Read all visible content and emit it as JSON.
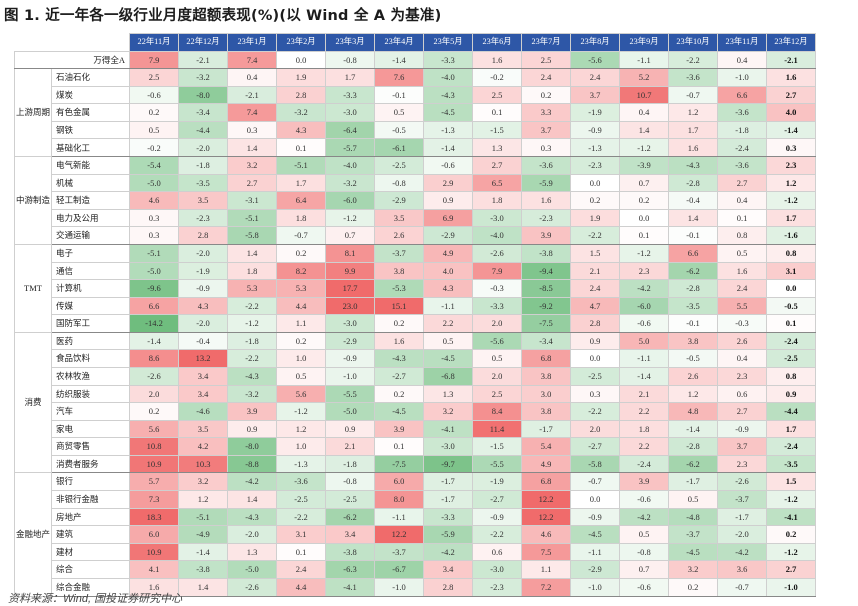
{
  "title": "图 1. 近一年各一级行业月度超额表现(%)(以 Wind 全 A 为基准)",
  "source": "资料来源：Wind, 国投证券研究中心",
  "months": [
    "22年11月",
    "22年12月",
    "23年1月",
    "23年2月",
    "23年3月",
    "23年4月",
    "23年5月",
    "23年6月",
    "23年7月",
    "23年8月",
    "23年9月",
    "23年10月",
    "23年11月",
    "23年12月"
  ],
  "colors": {
    "header": "#2e57a7",
    "pos_max": "#f06b6b",
    "neg_max": "#6fbd7e"
  },
  "wande": {
    "name": "万得全A",
    "values": [
      7.9,
      -2.1,
      7.4,
      0.0,
      -0.8,
      -1.4,
      -3.3,
      1.6,
      2.5,
      -5.6,
      -1.1,
      -2.2,
      0.4,
      -2.1
    ]
  },
  "groups": [
    {
      "name": "上游周期",
      "rows": [
        {
          "name": "石油石化",
          "values": [
            2.5,
            -3.2,
            0.4,
            1.9,
            1.7,
            7.6,
            -4.0,
            -0.2,
            2.4,
            2.4,
            5.2,
            -3.6,
            -1.0,
            1.6
          ]
        },
        {
          "name": "煤炭",
          "values": [
            -0.6,
            -8.0,
            -2.1,
            2.8,
            -3.3,
            -0.1,
            -4.3,
            2.5,
            0.2,
            3.7,
            10.7,
            -0.7,
            6.6,
            2.7
          ]
        },
        {
          "name": "有色金属",
          "values": [
            0.2,
            -3.4,
            7.4,
            -3.2,
            -3.0,
            0.5,
            -4.5,
            0.1,
            3.3,
            -1.9,
            0.4,
            1.2,
            -3.6,
            4.0
          ]
        },
        {
          "name": "钢铁",
          "values": [
            0.5,
            -4.4,
            0.3,
            4.3,
            -6.4,
            -0.5,
            -1.3,
            -1.5,
            3.7,
            -0.9,
            1.4,
            1.7,
            -1.8,
            -1.4
          ]
        },
        {
          "name": "基础化工",
          "values": [
            -0.2,
            -2.0,
            1.4,
            0.1,
            -5.7,
            -6.1,
            -1.4,
            1.3,
            0.3,
            -1.3,
            -1.2,
            1.6,
            -2.4,
            0.3
          ]
        }
      ]
    },
    {
      "name": "中游制造",
      "rows": [
        {
          "name": "电气新能",
          "values": [
            -5.4,
            -1.8,
            3.2,
            -5.1,
            -4.0,
            -2.5,
            -0.6,
            2.7,
            -3.6,
            -2.3,
            -3.9,
            -4.3,
            -3.6,
            2.3
          ]
        },
        {
          "name": "机械",
          "values": [
            -5.0,
            -3.5,
            2.7,
            1.7,
            -3.2,
            -0.8,
            2.9,
            6.5,
            -5.9,
            0.0,
            0.7,
            -2.8,
            2.7,
            1.2
          ]
        },
        {
          "name": "轻工制造",
          "values": [
            4.6,
            3.5,
            -3.1,
            6.4,
            -6.0,
            -2.9,
            0.9,
            1.8,
            1.6,
            0.2,
            0.2,
            -0.4,
            0.4,
            -1.2
          ]
        },
        {
          "name": "电力及公用",
          "values": [
            0.3,
            -2.3,
            -5.1,
            1.8,
            -1.2,
            3.5,
            6.9,
            -3.0,
            -2.3,
            1.9,
            0.0,
            1.4,
            0.1,
            1.7
          ]
        },
        {
          "name": "交通运输",
          "values": [
            0.3,
            2.8,
            -5.8,
            -0.7,
            0.7,
            2.6,
            -2.9,
            -4.0,
            3.9,
            -2.2,
            0.1,
            -0.1,
            0.8,
            -1.6
          ]
        }
      ]
    },
    {
      "name": "TMT",
      "rows": [
        {
          "name": "电子",
          "values": [
            -5.1,
            -2.0,
            1.4,
            0.2,
            8.1,
            -3.7,
            4.9,
            -2.6,
            -3.8,
            1.5,
            -1.2,
            6.6,
            0.5,
            0.8
          ]
        },
        {
          "name": "通信",
          "values": [
            -5.0,
            -1.9,
            1.8,
            8.2,
            9.9,
            3.8,
            4.0,
            7.9,
            -9.4,
            2.1,
            2.3,
            -6.2,
            1.6,
            3.1
          ]
        },
        {
          "name": "计算机",
          "values": [
            -9.6,
            -0.9,
            5.3,
            5.3,
            17.7,
            -5.3,
            4.3,
            -0.3,
            -8.5,
            2.4,
            -4.2,
            -2.8,
            2.4,
            0.0
          ]
        },
        {
          "name": "传媒",
          "values": [
            6.6,
            4.3,
            -2.2,
            4.4,
            23.0,
            15.1,
            -1.1,
            -3.3,
            -9.2,
            4.7,
            -6.0,
            -3.5,
            5.5,
            -0.5
          ]
        },
        {
          "name": "国防军工",
          "values": [
            -14.2,
            -2.0,
            -1.2,
            1.1,
            -3.0,
            0.2,
            2.2,
            2.0,
            -7.5,
            2.8,
            -0.6,
            -0.1,
            -0.3,
            0.1
          ]
        }
      ]
    },
    {
      "name": "消费",
      "rows": [
        {
          "name": "医药",
          "values": [
            -1.4,
            -0.4,
            -1.8,
            0.2,
            -2.9,
            1.6,
            0.5,
            -5.6,
            -3.4,
            0.9,
            5.0,
            3.8,
            2.6,
            -2.4
          ]
        },
        {
          "name": "食品饮料",
          "values": [
            8.6,
            13.2,
            -2.2,
            1.0,
            -0.9,
            -4.3,
            -4.5,
            0.5,
            6.8,
            0.0,
            -1.1,
            -0.5,
            0.4,
            -2.5
          ]
        },
        {
          "name": "农林牧渔",
          "values": [
            -2.6,
            3.4,
            -4.3,
            0.5,
            -1.0,
            -2.7,
            -6.8,
            2.0,
            3.8,
            -2.5,
            -1.4,
            2.6,
            2.3,
            0.8
          ]
        },
        {
          "name": "纺织服装",
          "values": [
            2.0,
            3.4,
            -3.2,
            5.6,
            -5.5,
            0.2,
            1.3,
            2.5,
            3.0,
            0.3,
            2.1,
            1.2,
            0.6,
            0.9
          ]
        },
        {
          "name": "汽车",
          "values": [
            0.2,
            -4.6,
            3.9,
            -1.2,
            -5.0,
            -4.5,
            3.2,
            8.4,
            3.8,
            -2.2,
            2.2,
            4.8,
            2.7,
            -4.4
          ]
        },
        {
          "name": "家电",
          "values": [
            5.6,
            3.5,
            0.9,
            1.2,
            0.9,
            3.9,
            -4.1,
            11.4,
            -1.7,
            2.0,
            1.8,
            -1.4,
            -0.9,
            1.7
          ]
        },
        {
          "name": "商贸零售",
          "values": [
            10.8,
            4.2,
            -8.0,
            1.0,
            2.1,
            0.1,
            -3.0,
            -1.5,
            5.4,
            -2.7,
            2.2,
            -2.8,
            3.7,
            -2.4
          ]
        },
        {
          "name": "消费者服务",
          "values": [
            10.9,
            10.3,
            -8.8,
            -1.3,
            -1.8,
            -7.5,
            -9.7,
            -5.5,
            4.9,
            -5.8,
            -2.4,
            -6.2,
            2.3,
            -3.5
          ]
        }
      ]
    },
    {
      "name": "金融地产",
      "rows": [
        {
          "name": "银行",
          "values": [
            5.7,
            3.2,
            -4.2,
            -3.6,
            -0.8,
            6.0,
            -1.7,
            -1.9,
            6.8,
            -0.7,
            3.9,
            -1.7,
            -2.6,
            1.5
          ]
        },
        {
          "name": "非银行金融",
          "values": [
            7.3,
            1.2,
            1.4,
            -2.5,
            -2.5,
            8.0,
            -1.7,
            -2.7,
            12.2,
            0.0,
            -0.6,
            0.5,
            -3.7,
            -1.2
          ]
        },
        {
          "name": "房地产",
          "values": [
            18.3,
            -5.1,
            -4.3,
            -2.2,
            -6.2,
            -1.1,
            -3.3,
            -0.9,
            12.2,
            -0.9,
            -4.2,
            -4.8,
            -1.7,
            -4.1
          ]
        },
        {
          "name": "建筑",
          "values": [
            6.0,
            -4.9,
            -2.0,
            3.1,
            3.4,
            12.2,
            -5.9,
            -2.2,
            4.6,
            -4.5,
            0.5,
            -3.7,
            -2.0,
            0.2
          ]
        },
        {
          "name": "建材",
          "values": [
            10.9,
            -1.4,
            1.3,
            0.1,
            -3.8,
            -3.7,
            -4.2,
            0.6,
            7.5,
            -1.1,
            -0.8,
            -4.5,
            -4.2,
            -1.2
          ]
        },
        {
          "name": "综合",
          "values": [
            4.1,
            -3.8,
            -5.0,
            2.4,
            -6.3,
            -6.7,
            3.4,
            -3.0,
            1.1,
            -2.9,
            0.7,
            3.2,
            3.6,
            2.7
          ]
        },
        {
          "name": "综合金融",
          "values": [
            1.6,
            1.4,
            -2.6,
            4.4,
            -4.1,
            -1.0,
            2.8,
            -2.3,
            7.2,
            -1.0,
            -0.6,
            0.2,
            -0.7,
            -1.0
          ]
        }
      ]
    }
  ]
}
